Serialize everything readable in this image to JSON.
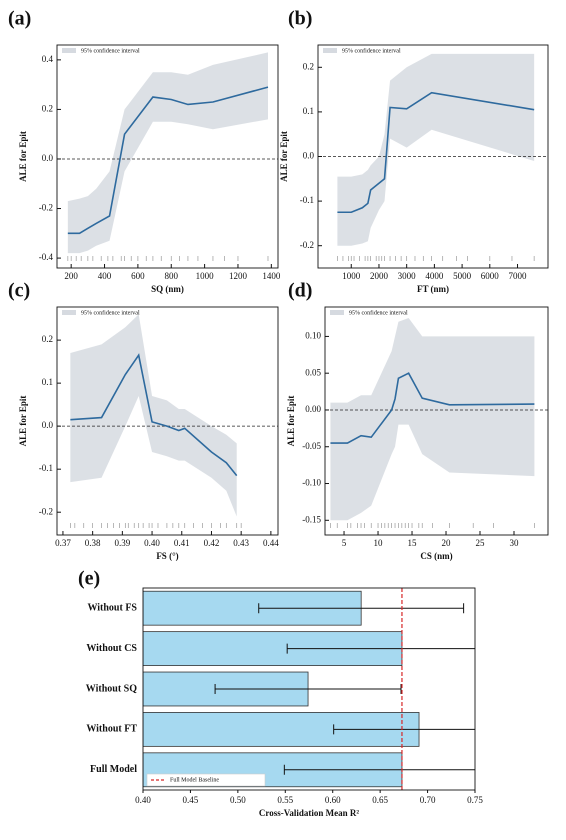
{
  "chart_data": [
    {
      "type": "line",
      "panel_label": "(a)",
      "xlabel": "SQ (nm)",
      "ylabel": "ALE for Epit",
      "ci_label": "95% confidence interval",
      "x": [
        180,
        250,
        300,
        350,
        430,
        520,
        690,
        800,
        900,
        1050,
        1380
      ],
      "values": [
        -0.3,
        -0.3,
        -0.28,
        -0.26,
        -0.23,
        0.1,
        0.25,
        0.24,
        0.22,
        0.23,
        0.29
      ],
      "ci_upper": [
        -0.17,
        -0.16,
        -0.15,
        -0.12,
        -0.05,
        0.2,
        0.35,
        0.35,
        0.34,
        0.38,
        0.43
      ],
      "ci_lower": [
        -0.38,
        -0.38,
        -0.37,
        -0.35,
        -0.33,
        -0.05,
        0.15,
        0.15,
        0.14,
        0.12,
        0.16
      ],
      "rug": [
        180,
        200,
        230,
        260,
        300,
        330,
        380,
        420,
        450,
        500,
        520,
        560,
        600,
        650,
        690,
        740,
        800,
        850,
        900,
        960,
        1050,
        1120,
        1200,
        1380
      ],
      "hline": 0,
      "color": "#2e6a9e",
      "ci_color": "#d6dae0",
      "xlim": [
        115,
        1440
      ],
      "ylim": [
        -0.44,
        0.46
      ],
      "xticks": [
        200,
        400,
        600,
        800,
        1000,
        1200,
        1400
      ],
      "yticks": [
        -0.4,
        -0.2,
        {
          "value": 0,
          "label": "0.0"
        },
        0.2,
        0.4
      ]
    },
    {
      "type": "line",
      "panel_label": "(b)",
      "xlabel": "FT (nm)",
      "ylabel": "ALE for Epit",
      "ci_label": "95% confidence interval",
      "x": [
        500,
        1000,
        1400,
        1600,
        1700,
        2000,
        2200,
        2400,
        3000,
        3900,
        7600
      ],
      "values": [
        -0.125,
        -0.125,
        -0.115,
        -0.105,
        -0.075,
        -0.06,
        -0.05,
        0.11,
        0.107,
        0.143,
        0.105
      ],
      "ci_upper": [
        -0.045,
        -0.045,
        -0.04,
        -0.03,
        -0.02,
        0.0,
        0.05,
        0.17,
        0.2,
        0.23,
        0.23
      ],
      "ci_lower": [
        -0.2,
        -0.2,
        -0.195,
        -0.19,
        -0.16,
        -0.12,
        -0.1,
        0.04,
        0.02,
        0.06,
        -0.01
      ],
      "rug": [
        500,
        700,
        900,
        1000,
        1100,
        1300,
        1500,
        1600,
        1700,
        1900,
        2000,
        2100,
        2200,
        2400,
        2600,
        2800,
        3000,
        3300,
        3600,
        3900,
        4300,
        4800,
        5200,
        6000,
        6800,
        7600
      ],
      "hline": 0,
      "color": "#2e6a9e",
      "ci_color": "#d6dae0",
      "xlim": [
        -200,
        8100
      ],
      "ylim": [
        -0.25,
        0.25
      ],
      "xticks": [
        1000,
        2000,
        3000,
        4000,
        5000,
        6000,
        7000
      ],
      "yticks": [
        -0.2,
        -0.1,
        {
          "value": 0,
          "label": "0.0"
        },
        0.1,
        0.2
      ]
    },
    {
      "type": "line",
      "panel_label": "(c)",
      "xlabel": "FS (°)",
      "ylabel": "ALE for Epit",
      "ci_label": "95% confidence interval",
      "x": [
        0.3725,
        0.383,
        0.391,
        0.3955,
        0.4,
        0.405,
        0.409,
        0.411,
        0.42,
        0.425,
        0.4285
      ],
      "values": [
        0.015,
        0.02,
        0.12,
        0.165,
        0.01,
        0.0,
        -0.01,
        -0.005,
        -0.06,
        -0.085,
        -0.115
      ],
      "ci_upper": [
        0.17,
        0.19,
        0.23,
        0.26,
        0.07,
        0.06,
        0.04,
        0.04,
        0.0,
        -0.02,
        -0.04
      ],
      "ci_lower": [
        -0.13,
        -0.12,
        0.0,
        0.07,
        -0.06,
        -0.07,
        -0.08,
        -0.08,
        -0.12,
        -0.15,
        -0.21
      ],
      "rug": [
        0.3725,
        0.374,
        0.377,
        0.38,
        0.383,
        0.385,
        0.387,
        0.389,
        0.391,
        0.392,
        0.394,
        0.3955,
        0.397,
        0.399,
        0.4,
        0.402,
        0.405,
        0.407,
        0.409,
        0.411,
        0.414,
        0.417,
        0.42,
        0.423,
        0.425,
        0.4285,
        0.43
      ],
      "hline": 0,
      "color": "#2e6a9e",
      "ci_color": "#d6dae0",
      "xlim": [
        0.368,
        0.4424
      ],
      "ylim": [
        -0.253,
        0.277
      ],
      "xticks": [
        0.37,
        0.38,
        0.39,
        {
          "value": 0.4,
          "label": "0.40"
        },
        0.41,
        0.42,
        0.43,
        0.44
      ],
      "yticks": [
        -0.2,
        -0.1,
        {
          "value": 0,
          "label": "0.0"
        },
        0.1,
        0.2
      ]
    },
    {
      "type": "line",
      "panel_label": "(d)",
      "xlabel": "CS (nm)",
      "ylabel": "ALE for Epit",
      "ci_label": "95% confidence interval",
      "x": [
        3,
        5.5,
        7.5,
        9,
        12,
        12.5,
        13,
        14.5,
        16.5,
        20.5,
        33
      ],
      "values": [
        -0.045,
        -0.045,
        -0.035,
        -0.037,
        0.0,
        0.015,
        0.043,
        0.05,
        0.016,
        0.007,
        0.008
      ],
      "ci_upper": [
        0.01,
        0.01,
        0.02,
        0.02,
        0.08,
        0.1,
        0.12,
        0.125,
        0.1,
        0.1,
        0.1
      ],
      "ci_lower": [
        -0.15,
        -0.15,
        -0.14,
        -0.13,
        -0.06,
        -0.05,
        -0.02,
        -0.02,
        -0.06,
        -0.085,
        -0.09
      ],
      "rug": [
        3,
        4,
        5.5,
        6,
        7,
        7.5,
        8,
        9,
        10,
        10.5,
        11,
        11.5,
        12,
        12.5,
        13,
        13.5,
        14,
        14.5,
        15,
        16,
        16.5,
        18,
        20.5,
        24,
        27,
        33
      ],
      "hline": 0,
      "color": "#2e6a9e",
      "ci_color": "#d6dae0",
      "xlim": [
        2.2,
        35
      ],
      "ylim": [
        -0.17,
        0.14
      ],
      "xticks": [
        5,
        10,
        15,
        20,
        25,
        30
      ],
      "yticks": [
        -0.15,
        {
          "value": -0.1,
          "label": "-0.10"
        },
        -0.05,
        {
          "value": 0,
          "label": "0.00"
        },
        0.05,
        {
          "value": 0.1,
          "label": "0.10"
        }
      ]
    },
    {
      "type": "barh",
      "panel_label": "(e)",
      "xlabel": "Cross-Validation Mean R²",
      "categories": [
        "Without FS",
        "Without CS",
        "Without SQ",
        "Without FT",
        "Full Model"
      ],
      "values": [
        0.63,
        0.673,
        0.574,
        0.691,
        0.673
      ],
      "errors": [
        0.108,
        0.121,
        0.098,
        0.09,
        0.124
      ],
      "color": "#a6d9f0",
      "baseline": 0.673,
      "baseline_label": "Full Model Baseline",
      "baseline_color": "#d62728",
      "xlim": [
        0.4,
        0.75
      ],
      "xticks": [
        {
          "value": 0.4,
          "label": "0.40"
        },
        0.45,
        {
          "value": 0.5,
          "label": "0.50"
        },
        0.55,
        {
          "value": 0.6,
          "label": "0.60"
        },
        0.65,
        {
          "value": 0.7,
          "label": "0.70"
        },
        0.75
      ]
    }
  ]
}
